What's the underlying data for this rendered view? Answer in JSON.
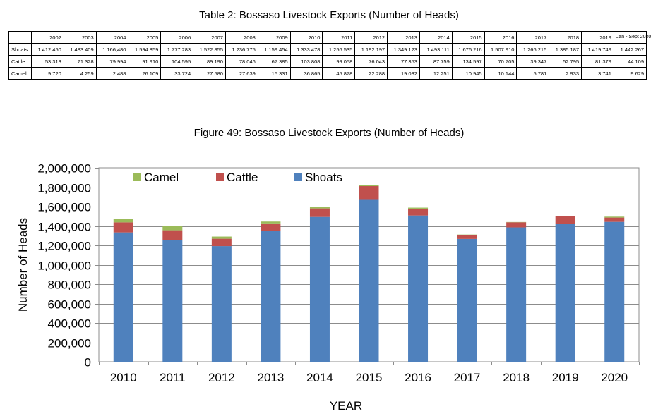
{
  "table": {
    "title": "Table 2: Bossaso Livestock Exports (Number of Heads)",
    "columns": [
      "2002",
      "2003",
      "2004",
      "2005",
      "2006",
      "2007",
      "2008",
      "2009",
      "2010",
      "2011",
      "2012",
      "2013",
      "2014",
      "2015",
      "2016",
      "2017",
      "2018",
      "2019",
      "Jan - Sept 2020"
    ],
    "rows": [
      {
        "label": "Shoats",
        "values": [
          "1 412 450",
          "1 483 409",
          "1 166,480",
          "1 594 859",
          "1 777 283",
          "1 522 855",
          "1 236 775",
          "1 159 454",
          "1 333 478",
          "1 256 535",
          "1 192 197",
          "1 349 123",
          "1 493 111",
          "1 676 216",
          "1 507 910",
          "1 266 215",
          "1 385 187",
          "1 419 749",
          "1 442 267"
        ]
      },
      {
        "label": "Cattle",
        "values": [
          "53 313",
          "71 328",
          "79 994",
          "91 910",
          "104 595",
          "89 190",
          "78 046",
          "67 385",
          "103 808",
          "99 058",
          "76 043",
          "77 353",
          "87 759",
          "134 597",
          "70 705",
          "39 347",
          "52 795",
          "81 379",
          "44 109"
        ]
      },
      {
        "label": "Camel",
        "values": [
          "9 720",
          "4 259",
          "2 488",
          "26 109",
          "33 724",
          "27 580",
          "27 639",
          "15 331",
          "36 865",
          "45 878",
          "22 288",
          "19 032",
          "12 251",
          "10 945",
          "10 144",
          "5 781",
          "2 933",
          "3 741",
          "9 629"
        ]
      }
    ]
  },
  "chart_data": {
    "type": "bar",
    "stacked": true,
    "title": "Figure 49: Bossaso Livestock Exports (Number of Heads)",
    "xlabel": "YEAR",
    "ylabel": "Number of Heads",
    "ylim": [
      0,
      2000000
    ],
    "yticks": [
      0,
      200000,
      400000,
      600000,
      800000,
      1000000,
      1200000,
      1400000,
      1600000,
      1800000,
      2000000
    ],
    "ytick_labels": [
      "0",
      "200,000",
      "400,000",
      "600,000",
      "800,000",
      "1,000,000",
      "1,200,000",
      "1,400,000",
      "1,600,000",
      "1,800,000",
      "2,000,000"
    ],
    "grid": true,
    "legend": "top-left",
    "categories": [
      "2010",
      "2011",
      "2012",
      "2013",
      "2014",
      "2015",
      "2016",
      "2017",
      "2018",
      "2019",
      "2020"
    ],
    "series": [
      {
        "name": "Shoats",
        "color": "#4f81bd",
        "values": [
          1333478,
          1256535,
          1192197,
          1349123,
          1493111,
          1676216,
          1507910,
          1266215,
          1385187,
          1419749,
          1442267
        ]
      },
      {
        "name": "Cattle",
        "color": "#c0504d",
        "values": [
          103808,
          99058,
          76043,
          77353,
          87759,
          134597,
          70705,
          39347,
          52795,
          81379,
          44109
        ]
      },
      {
        "name": "Camel",
        "color": "#9bbb59",
        "values": [
          36865,
          45878,
          22288,
          19032,
          12251,
          10945,
          10144,
          5781,
          2933,
          3741,
          9629
        ]
      }
    ],
    "legend_order": [
      "Camel",
      "Cattle",
      "Shoats"
    ]
  }
}
